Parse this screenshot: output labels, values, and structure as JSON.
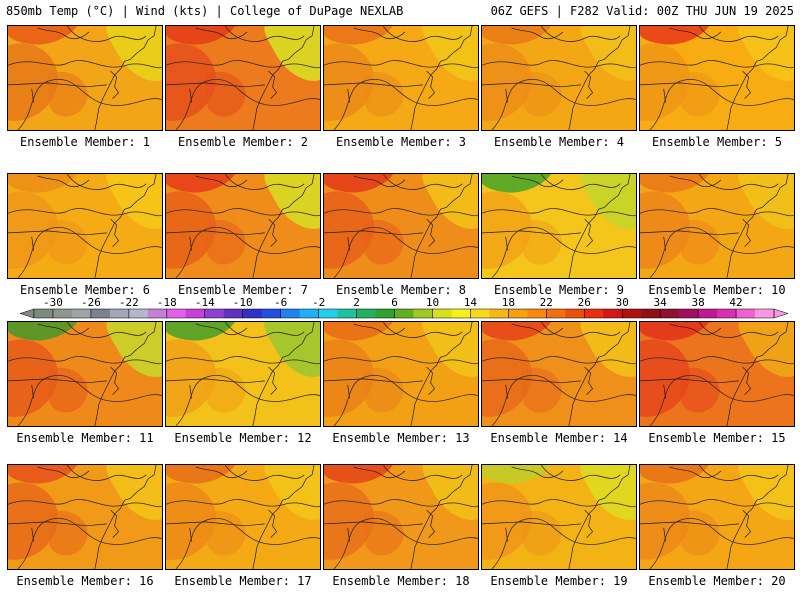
{
  "header": {
    "left": "850mb Temp (°C) | Wind (kts) | College of DuPage NEXLAB",
    "right": "06Z GEFS | F282 Valid: 00Z THU JUN 19 2025"
  },
  "panels": [
    {
      "label": "Ensemble Member: 1",
      "base": "#f2a516",
      "warm": "#e67818",
      "cool": "#e8d21a",
      "hot": "#e85018"
    },
    {
      "label": "Ensemble Member: 2",
      "base": "#ed7a1c",
      "warm": "#e5501a",
      "cool": "#d9dc22",
      "hot": "#e23418"
    },
    {
      "label": "Ensemble Member: 3",
      "base": "#f5a914",
      "warm": "#ea8a18",
      "cool": "#f2c417",
      "hot": "#e86a18"
    },
    {
      "label": "Ensemble Member: 4",
      "base": "#f3a715",
      "warm": "#ec8e18",
      "cool": "#f2c019",
      "hot": "#e87318"
    },
    {
      "label": "Ensemble Member: 5",
      "base": "#f7ad12",
      "warm": "#ef9516",
      "cool": "#f4c318",
      "hot": "#e8281c"
    },
    {
      "label": "Ensemble Member: 6",
      "base": "#f5ab14",
      "warm": "#ee9617",
      "cool": "#f5c617",
      "hot": "#ea8818"
    },
    {
      "label": "Ensemble Member: 7",
      "base": "#ef8c1a",
      "warm": "#e86219",
      "cool": "#d7da24",
      "hot": "#e5301a"
    },
    {
      "label": "Ensemble Member: 8",
      "base": "#ef8d1a",
      "warm": "#e86019",
      "cool": "#f3c018",
      "hot": "#e3301b"
    },
    {
      "label": "Ensemble Member: 9",
      "base": "#f4c51a",
      "warm": "#f2a316",
      "cool": "#c4d42a",
      "hot": "#2f9e2c"
    },
    {
      "label": "Ensemble Member: 10",
      "base": "#f4a715",
      "warm": "#ec8518",
      "cool": "#f2c218",
      "hot": "#e87018"
    },
    {
      "label": "Ensemble Member: 11",
      "base": "#ef8a1a",
      "warm": "#e65a1a",
      "cool": "#c8d42a",
      "hot": "#2e9a2c"
    },
    {
      "label": "Ensemble Member: 12",
      "base": "#f2c11a",
      "warm": "#f0a116",
      "cool": "#9cc82e",
      "hot": "#2e9a2c"
    },
    {
      "label": "Ensemble Member: 13",
      "base": "#f3a114",
      "warm": "#ea8218",
      "cool": "#f2c118",
      "hot": "#e86418"
    },
    {
      "label": "Ensemble Member: 14",
      "base": "#ef901a",
      "warm": "#e86a19",
      "cool": "#f2c018",
      "hot": "#e5381b"
    },
    {
      "label": "Ensemble Member: 15",
      "base": "#ec741c",
      "warm": "#e6481b",
      "cool": "#f0a716",
      "hot": "#e2281c"
    },
    {
      "label": "Ensemble Member: 16",
      "base": "#f09a18",
      "warm": "#e86a19",
      "cool": "#f3c218",
      "hot": "#e5461b"
    },
    {
      "label": "Ensemble Member: 17",
      "base": "#f4aa14",
      "warm": "#ec8a18",
      "cool": "#f3c418",
      "hot": "#e66418"
    },
    {
      "label": "Ensemble Member: 18",
      "base": "#f1981a",
      "warm": "#e87019",
      "cool": "#f2c018",
      "hot": "#e4381b"
    },
    {
      "label": "Ensemble Member: 19",
      "base": "#f4b314",
      "warm": "#ef9517",
      "cool": "#e0da20",
      "hot": "#b8d22a"
    },
    {
      "label": "Ensemble Member: 20",
      "base": "#f4a614",
      "warm": "#ec8818",
      "cool": "#f3c418",
      "hot": "#e86818"
    }
  ],
  "colorbar": {
    "ticks": [
      "-30",
      "-26",
      "-22",
      "-18",
      "-14",
      "-10",
      "-6",
      "-2",
      "2",
      "6",
      "10",
      "14",
      "18",
      "22",
      "26",
      "30",
      "34",
      "38",
      "42"
    ],
    "colors": [
      "#7f8a7f",
      "#8f968f",
      "#a0a4a8",
      "#7c8190",
      "#a4a7b8",
      "#b5b8cc",
      "#c47fd6",
      "#e060e8",
      "#c840d8",
      "#9040d0",
      "#6030c0",
      "#3030c8",
      "#2050e0",
      "#2080f0",
      "#20b0f8",
      "#20d0e8",
      "#20c0a0",
      "#20b060",
      "#30a030",
      "#60b020",
      "#a0c820",
      "#d8e018",
      "#f8f018",
      "#f8d818",
      "#f8b818",
      "#f8a010",
      "#f88810",
      "#f07010",
      "#e85010",
      "#e83010",
      "#d01818",
      "#b01010",
      "#901018",
      "#901030",
      "#a01060",
      "#c01890",
      "#d830b0",
      "#f060d0",
      "#f898e0"
    ]
  }
}
